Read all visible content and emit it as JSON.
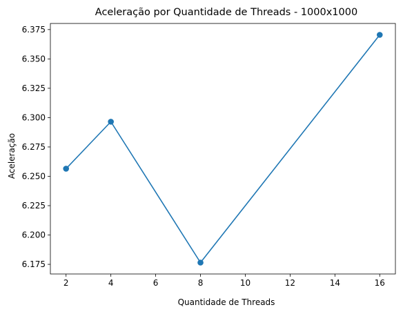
{
  "chart_data": {
    "type": "line",
    "title": "Aceleração por Quantidade de Threads - 1000x1000",
    "xlabel": "Quantidade de Threads",
    "ylabel": "Aceleração",
    "x": [
      2,
      4,
      8,
      16
    ],
    "series": [
      {
        "values": [
          6.2565,
          6.2965,
          6.1765,
          6.3705
        ],
        "color": "#1f77b4",
        "marker": "circle"
      }
    ],
    "xlim": [
      1.3,
      16.7
    ],
    "ylim": [
      6.1668,
      6.3802
    ],
    "xticks": [
      2,
      4,
      6,
      8,
      10,
      12,
      14,
      16
    ],
    "yticks": [
      6.175,
      6.2,
      6.225,
      6.25,
      6.275,
      6.3,
      6.325,
      6.35,
      6.375
    ],
    "ytick_labels": [
      "6.175",
      "6.200",
      "6.225",
      "6.250",
      "6.275",
      "6.300",
      "6.325",
      "6.350",
      "6.375"
    ],
    "grid": false,
    "legend": false
  }
}
